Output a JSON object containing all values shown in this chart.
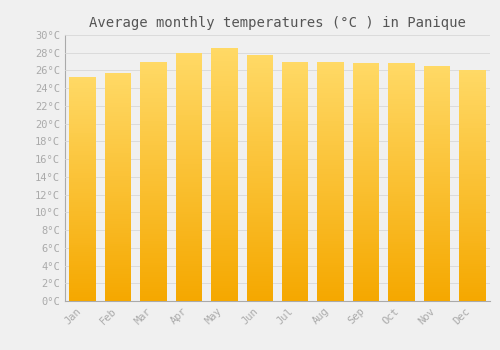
{
  "title": "Average monthly temperatures (°C ) in Panique",
  "months": [
    "Jan",
    "Feb",
    "Mar",
    "Apr",
    "May",
    "Jun",
    "Jul",
    "Aug",
    "Sep",
    "Oct",
    "Nov",
    "Dec"
  ],
  "values": [
    25.3,
    25.7,
    27.0,
    28.0,
    28.5,
    27.7,
    27.0,
    27.0,
    26.8,
    26.8,
    26.5,
    26.0
  ],
  "bar_color_top": "#FFD966",
  "bar_color_bottom": "#F5A800",
  "background_color": "#F0F0F0",
  "grid_color": "#D8D8D8",
  "ylim": [
    0,
    30
  ],
  "ytick_step": 2,
  "title_fontsize": 10,
  "tick_fontsize": 7.5,
  "tick_color": "#AAAAAA",
  "title_color": "#555555",
  "bar_width": 0.75
}
